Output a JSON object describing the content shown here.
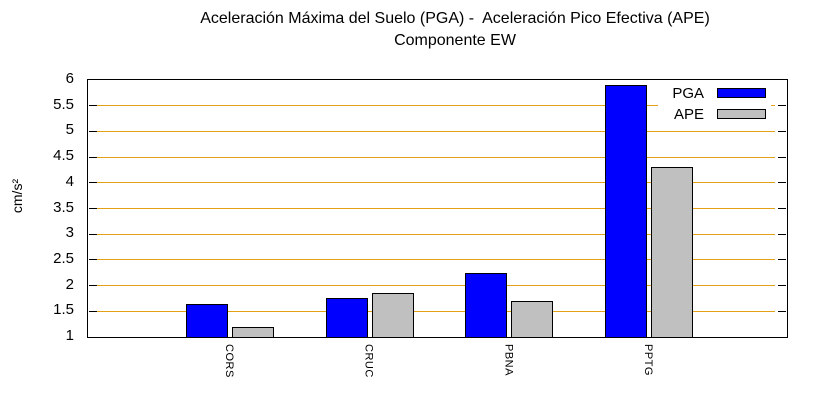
{
  "title": {
    "line1": "Aceleración Máxima del Suelo (PGA) -  Aceleración Pico Efectiva (APE)",
    "line2": "Componente EW"
  },
  "chart_data": {
    "type": "bar",
    "title": "Aceleración Máxima del Suelo (PGA) -  Aceleración Pico Efectiva (APE)",
    "subtitle": "Componente EW",
    "xlabel": "",
    "ylabel": "cm/s²",
    "categories": [
      "CORS",
      "CRUC",
      "PBNA",
      "PPTG"
    ],
    "series": [
      {
        "name": "PGA",
        "color": "#0000ff",
        "values": [
          1.65,
          1.75,
          2.25,
          5.9
        ]
      },
      {
        "name": "APE",
        "color": "#c0c0c0",
        "values": [
          1.2,
          1.85,
          1.7,
          4.3
        ]
      }
    ],
    "ylim": [
      1,
      6
    ],
    "ytick_step": 0.5,
    "ytick_labels": [
      "1",
      "1.5",
      "2",
      "2.5",
      "3",
      "3.5",
      "4",
      "4.5",
      "5",
      "5.5",
      "6"
    ],
    "grid": true,
    "grid_color": "#e2a116",
    "axis_color": "#000000",
    "legend_position": "top-right"
  }
}
